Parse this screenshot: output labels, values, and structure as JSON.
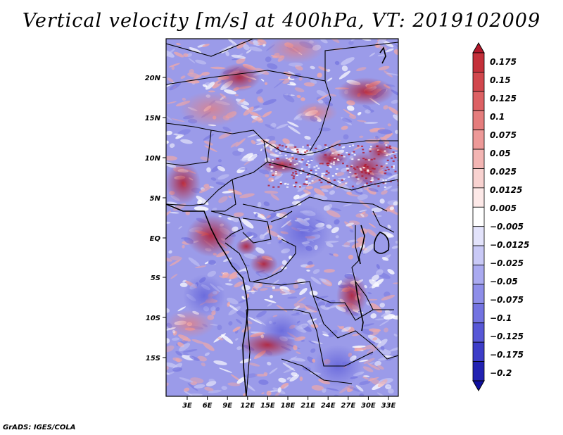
{
  "map": {
    "title": "Vertical velocity [m/s] at 400hPa, VT: 2019102009",
    "footer": "GrADS: IGES/COLA",
    "lat_ticks": [
      "20N",
      "15N",
      "10N",
      "5N",
      "EQ",
      "5S",
      "10S",
      "15S"
    ],
    "lon_ticks": [
      "3E",
      "6E",
      "9E",
      "12E",
      "15E",
      "18E",
      "21E",
      "24E",
      "27E",
      "30E",
      "33E"
    ],
    "colorbar": {
      "labels": [
        "0.175",
        "0.15",
        "0.125",
        "0.1",
        "0.075",
        "0.05",
        "0.025",
        "0.0125",
        "0.005",
        "−0.005",
        "−0.0125",
        "−0.025",
        "−0.05",
        "−0.075",
        "−0.1",
        "−0.125",
        "−0.175",
        "−0.2"
      ],
      "colors": [
        "#b2182b",
        "#c4303a",
        "#d1474d",
        "#dd6164",
        "#e57d7d",
        "#ed9998",
        "#f3b5b3",
        "#f8d2d0",
        "#fde9e8",
        "#ffffff",
        "#e3e3fb",
        "#c9c9f6",
        "#aaaaf0",
        "#8e8ee9",
        "#7373e1",
        "#5858d7",
        "#3d3dc8",
        "#2222b2",
        "#0f0fa0"
      ]
    }
  }
}
